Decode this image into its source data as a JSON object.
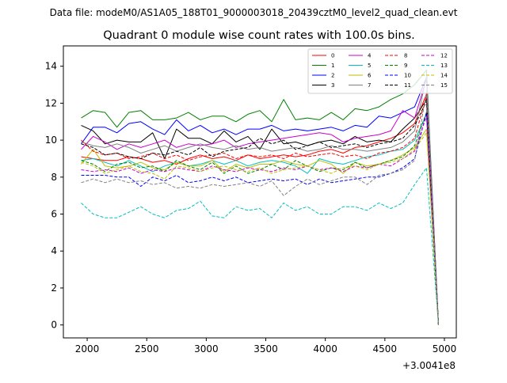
{
  "header": {
    "suptitle": "Data file: modeM0/AS1A05_188T01_9000003018_20439cztM0_level2_quad_clean.evt"
  },
  "chart_data": {
    "type": "line",
    "title": "Quadrant 0 module wise count rates with 100.0s bins.",
    "xlabel": "",
    "ylabel": "",
    "x_offset_label": "+3.0041e8",
    "xlim": [
      1800,
      5100
    ],
    "ylim": [
      -0.7,
      15.1
    ],
    "x_ticks": [
      2000,
      2500,
      3000,
      3500,
      4000,
      4500,
      5000
    ],
    "x_tick_labels": [
      "2000",
      "2500",
      "3000",
      "3500",
      "4000",
      "4500",
      "5000"
    ],
    "y_ticks": [
      0,
      2,
      4,
      6,
      8,
      10,
      12,
      14
    ],
    "y_tick_labels": [
      "0",
      "2",
      "4",
      "6",
      "8",
      "10",
      "12",
      "14"
    ],
    "grid": false,
    "legend_position": "top-right",
    "x": [
      1950,
      2050,
      2150,
      2250,
      2350,
      2450,
      2550,
      2650,
      2750,
      2850,
      2950,
      3050,
      3150,
      3250,
      3350,
      3450,
      3550,
      3650,
      3750,
      3850,
      3950,
      4050,
      4150,
      4250,
      4350,
      4450,
      4550,
      4650,
      4750,
      4850,
      4950
    ],
    "series": [
      {
        "name": "0",
        "color": "#ff0000",
        "dash": "solid",
        "values": [
          9.1,
          9.0,
          8.9,
          8.9,
          9.1,
          9.0,
          8.8,
          8.9,
          8.7,
          9.0,
          9.2,
          9.0,
          9.1,
          8.9,
          9.2,
          9.0,
          9.1,
          9.2,
          9.1,
          9.2,
          9.4,
          9.5,
          9.3,
          9.6,
          9.7,
          9.9,
          10.1,
          10.4,
          10.9,
          12.5,
          0.0
        ]
      },
      {
        "name": "1",
        "color": "#008000",
        "dash": "solid",
        "values": [
          11.2,
          11.6,
          11.5,
          10.7,
          11.5,
          11.6,
          11.1,
          11.1,
          11.2,
          11.5,
          11.1,
          11.3,
          11.3,
          11.0,
          11.4,
          11.6,
          11.0,
          12.2,
          11.1,
          11.2,
          11.1,
          11.5,
          11.1,
          11.7,
          11.6,
          11.8,
          12.2,
          12.5,
          13.0,
          13.8,
          0.0
        ]
      },
      {
        "name": "2",
        "color": "#0000ff",
        "dash": "solid",
        "values": [
          9.8,
          10.7,
          10.7,
          10.4,
          10.9,
          11.0,
          10.6,
          10.3,
          11.1,
          10.5,
          10.8,
          10.4,
          10.6,
          10.3,
          10.6,
          10.6,
          10.8,
          10.5,
          10.6,
          10.5,
          10.6,
          10.7,
          10.5,
          10.8,
          10.7,
          11.3,
          11.2,
          11.5,
          11.8,
          13.4,
          0.0
        ]
      },
      {
        "name": "3",
        "color": "#000000",
        "dash": "solid",
        "values": [
          10.8,
          10.5,
          9.8,
          10.0,
          9.9,
          9.9,
          10.4,
          9.0,
          10.6,
          10.1,
          10.1,
          9.8,
          10.5,
          9.9,
          10.2,
          9.5,
          10.6,
          9.8,
          9.9,
          9.7,
          9.9,
          10.0,
          9.8,
          10.2,
          9.9,
          10.0,
          9.9,
          10.6,
          11.2,
          12.2,
          0.0
        ]
      },
      {
        "name": "4",
        "color": "#cc00cc",
        "dash": "solid",
        "values": [
          9.5,
          10.2,
          9.9,
          9.5,
          9.8,
          9.6,
          9.8,
          10.0,
          9.6,
          9.8,
          9.7,
          9.8,
          10.0,
          9.6,
          9.8,
          9.9,
          10.0,
          10.1,
          10.2,
          10.3,
          10.4,
          10.3,
          9.9,
          10.1,
          10.2,
          10.3,
          10.5,
          11.6,
          11.2,
          13.3,
          0.0
        ]
      },
      {
        "name": "5",
        "color": "#00bfbf",
        "dash": "solid",
        "values": [
          8.9,
          9.0,
          8.8,
          8.6,
          8.9,
          8.6,
          8.3,
          8.6,
          8.8,
          8.6,
          8.7,
          8.9,
          8.7,
          8.9,
          8.6,
          8.8,
          8.9,
          8.8,
          8.6,
          8.2,
          9.0,
          8.8,
          8.7,
          8.9,
          9.1,
          9.2,
          9.4,
          9.5,
          10.0,
          11.4,
          0.0
        ]
      },
      {
        "name": "6",
        "color": "#bfbf00",
        "dash": "solid",
        "values": [
          8.7,
          9.5,
          8.6,
          8.5,
          8.6,
          8.8,
          8.5,
          8.4,
          8.8,
          8.6,
          8.6,
          8.9,
          8.3,
          8.7,
          8.5,
          8.7,
          8.7,
          8.9,
          8.7,
          8.6,
          8.9,
          8.7,
          8.2,
          8.8,
          8.6,
          8.7,
          8.9,
          9.2,
          9.6,
          10.6,
          0.0
        ]
      },
      {
        "name": "7",
        "color": "#808080",
        "dash": "solid",
        "values": [
          9.9,
          9.7,
          9.6,
          9.8,
          9.6,
          9.3,
          9.5,
          9.7,
          9.4,
          9.6,
          9.8,
          9.6,
          9.5,
          9.7,
          9.5,
          9.6,
          9.4,
          9.5,
          9.6,
          9.4,
          9.5,
          9.7,
          9.5,
          9.5,
          9.4,
          9.5,
          9.6,
          9.9,
          10.5,
          13.4,
          0.0
        ]
      },
      {
        "name": "8",
        "color": "#ff0000",
        "dash": "dashed",
        "values": [
          10.0,
          9.4,
          9.2,
          9.3,
          9.0,
          9.1,
          9.3,
          9.0,
          9.2,
          8.9,
          9.1,
          9.2,
          9.3,
          9.0,
          9.2,
          9.1,
          9.2,
          9.0,
          9.3,
          9.1,
          9.2,
          9.3,
          9.1,
          9.2,
          9.0,
          9.3,
          9.4,
          9.6,
          10.1,
          12.4,
          0.0
        ]
      },
      {
        "name": "9",
        "color": "#008000",
        "dash": "dashed",
        "values": [
          8.9,
          8.7,
          8.3,
          8.7,
          8.8,
          8.5,
          8.6,
          8.3,
          8.9,
          8.6,
          8.4,
          8.8,
          8.2,
          8.6,
          8.2,
          8.4,
          8.7,
          8.4,
          8.9,
          8.6,
          8.3,
          8.5,
          8.4,
          8.8,
          8.5,
          8.7,
          8.9,
          9.1,
          9.7,
          11.5,
          0.0
        ]
      },
      {
        "name": "10",
        "color": "#0000ff",
        "dash": "dashed",
        "values": [
          8.1,
          8.1,
          8.1,
          8.0,
          8.0,
          7.5,
          8.0,
          7.8,
          8.1,
          7.7,
          7.8,
          8.0,
          7.8,
          8.0,
          7.7,
          7.8,
          7.9,
          7.8,
          7.9,
          7.6,
          7.9,
          7.7,
          7.8,
          7.9,
          8.0,
          8.0,
          8.2,
          8.5,
          9.0,
          11.5,
          0.0
        ]
      },
      {
        "name": "11",
        "color": "#000000",
        "dash": "dashed",
        "values": [
          9.8,
          9.6,
          9.2,
          9.3,
          9.1,
          9.0,
          9.3,
          9.2,
          9.4,
          9.2,
          9.6,
          9.1,
          9.4,
          9.5,
          9.6,
          10.1,
          9.8,
          10.0,
          9.5,
          9.7,
          9.9,
          9.6,
          9.7,
          9.8,
          9.6,
          9.8,
          9.9,
          10.1,
          10.8,
          12.1,
          0.0
        ]
      },
      {
        "name": "12",
        "color": "#cc00cc",
        "dash": "dashed",
        "values": [
          8.4,
          8.3,
          8.4,
          8.3,
          8.5,
          8.2,
          8.4,
          8.3,
          8.5,
          8.4,
          8.3,
          8.6,
          8.4,
          8.3,
          8.5,
          8.4,
          8.3,
          8.5,
          8.4,
          8.6,
          8.4,
          8.5,
          8.3,
          8.6,
          8.5,
          8.7,
          8.6,
          9.0,
          9.4,
          11.3,
          0.0
        ]
      },
      {
        "name": "13",
        "color": "#00bfbf",
        "dash": "dashed",
        "values": [
          6.6,
          6.0,
          5.8,
          5.8,
          6.1,
          6.4,
          6.0,
          5.8,
          6.2,
          6.3,
          6.7,
          5.9,
          5.8,
          6.4,
          6.2,
          6.3,
          5.8,
          6.6,
          6.2,
          6.4,
          6.0,
          6.0,
          6.4,
          6.4,
          6.2,
          6.6,
          6.3,
          6.6,
          7.6,
          8.5,
          0.0
        ]
      },
      {
        "name": "14",
        "color": "#bfbf00",
        "dash": "dashed",
        "values": [
          8.8,
          8.6,
          8.2,
          8.4,
          8.6,
          8.3,
          8.2,
          7.9,
          8.6,
          8.5,
          8.3,
          8.5,
          8.6,
          8.4,
          8.3,
          8.5,
          8.2,
          8.4,
          8.5,
          8.6,
          8.4,
          8.2,
          8.5,
          8.6,
          8.4,
          8.7,
          8.8,
          9.0,
          9.5,
          10.4,
          0.0
        ]
      },
      {
        "name": "15",
        "color": "#808080",
        "dash": "dashed",
        "values": [
          7.7,
          7.9,
          7.7,
          7.9,
          7.7,
          7.8,
          7.6,
          7.7,
          7.4,
          7.5,
          7.4,
          7.6,
          7.5,
          7.6,
          7.7,
          7.5,
          7.8,
          7.0,
          7.5,
          7.9,
          7.6,
          7.8,
          8.0,
          8.0,
          7.6,
          8.1,
          8.2,
          8.4,
          8.9,
          12.6,
          0.0
        ]
      }
    ]
  }
}
